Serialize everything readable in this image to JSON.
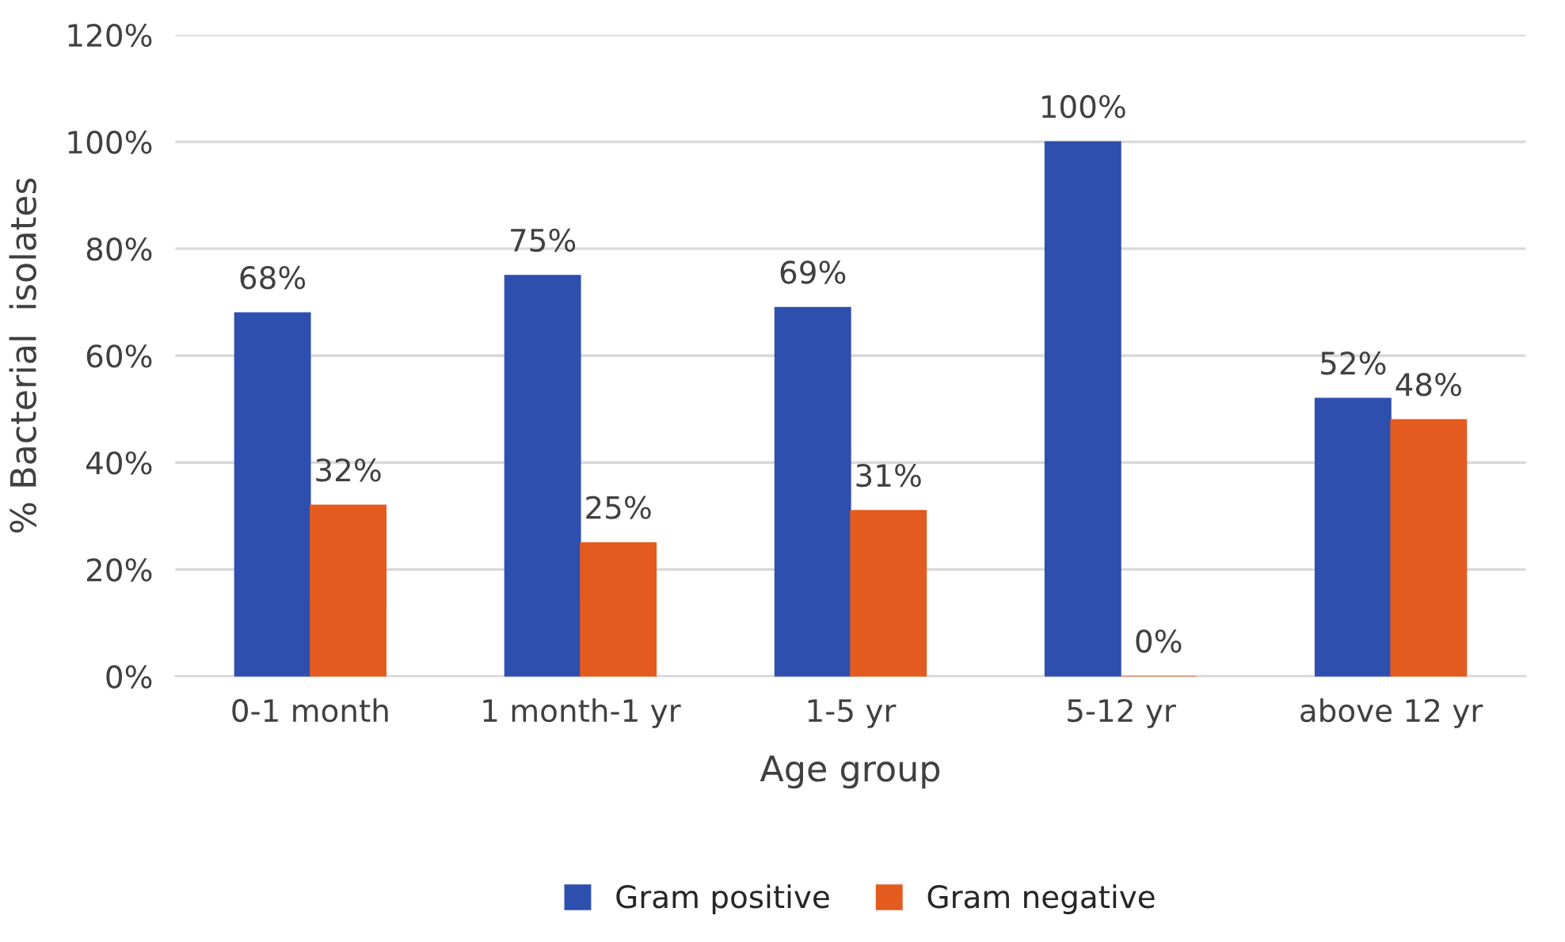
{
  "chart_data": {
    "type": "bar",
    "xlabel": "Age group",
    "ylabel": "% Bacterial  isolates",
    "categories": [
      "0-1 month",
      "1 month-1 yr",
      "1-5 yr",
      "5-12 yr",
      "above 12 yr"
    ],
    "series": [
      {
        "name": "Gram positive",
        "color": "#2e4fae",
        "values": [
          68,
          75,
          69,
          100,
          52
        ],
        "value_labels": [
          "68%",
          "75%",
          "69%",
          "100%",
          "52%"
        ]
      },
      {
        "name": "Gram negative",
        "color": "#e35b1f",
        "values": [
          32,
          25,
          31,
          0,
          48
        ],
        "value_labels": [
          "32%",
          "25%",
          "31%",
          "0%",
          "48%"
        ]
      }
    ],
    "ylim": [
      0,
      120
    ],
    "yticks": [
      {
        "value": 0,
        "label": "0%"
      },
      {
        "value": 20,
        "label": "20%"
      },
      {
        "value": 40,
        "label": "40%"
      },
      {
        "value": 60,
        "label": "60%"
      },
      {
        "value": 80,
        "label": "80%"
      },
      {
        "value": 100,
        "label": "100%"
      },
      {
        "value": 120,
        "label": "120%"
      }
    ],
    "grid": "y",
    "legend": "bottom"
  }
}
